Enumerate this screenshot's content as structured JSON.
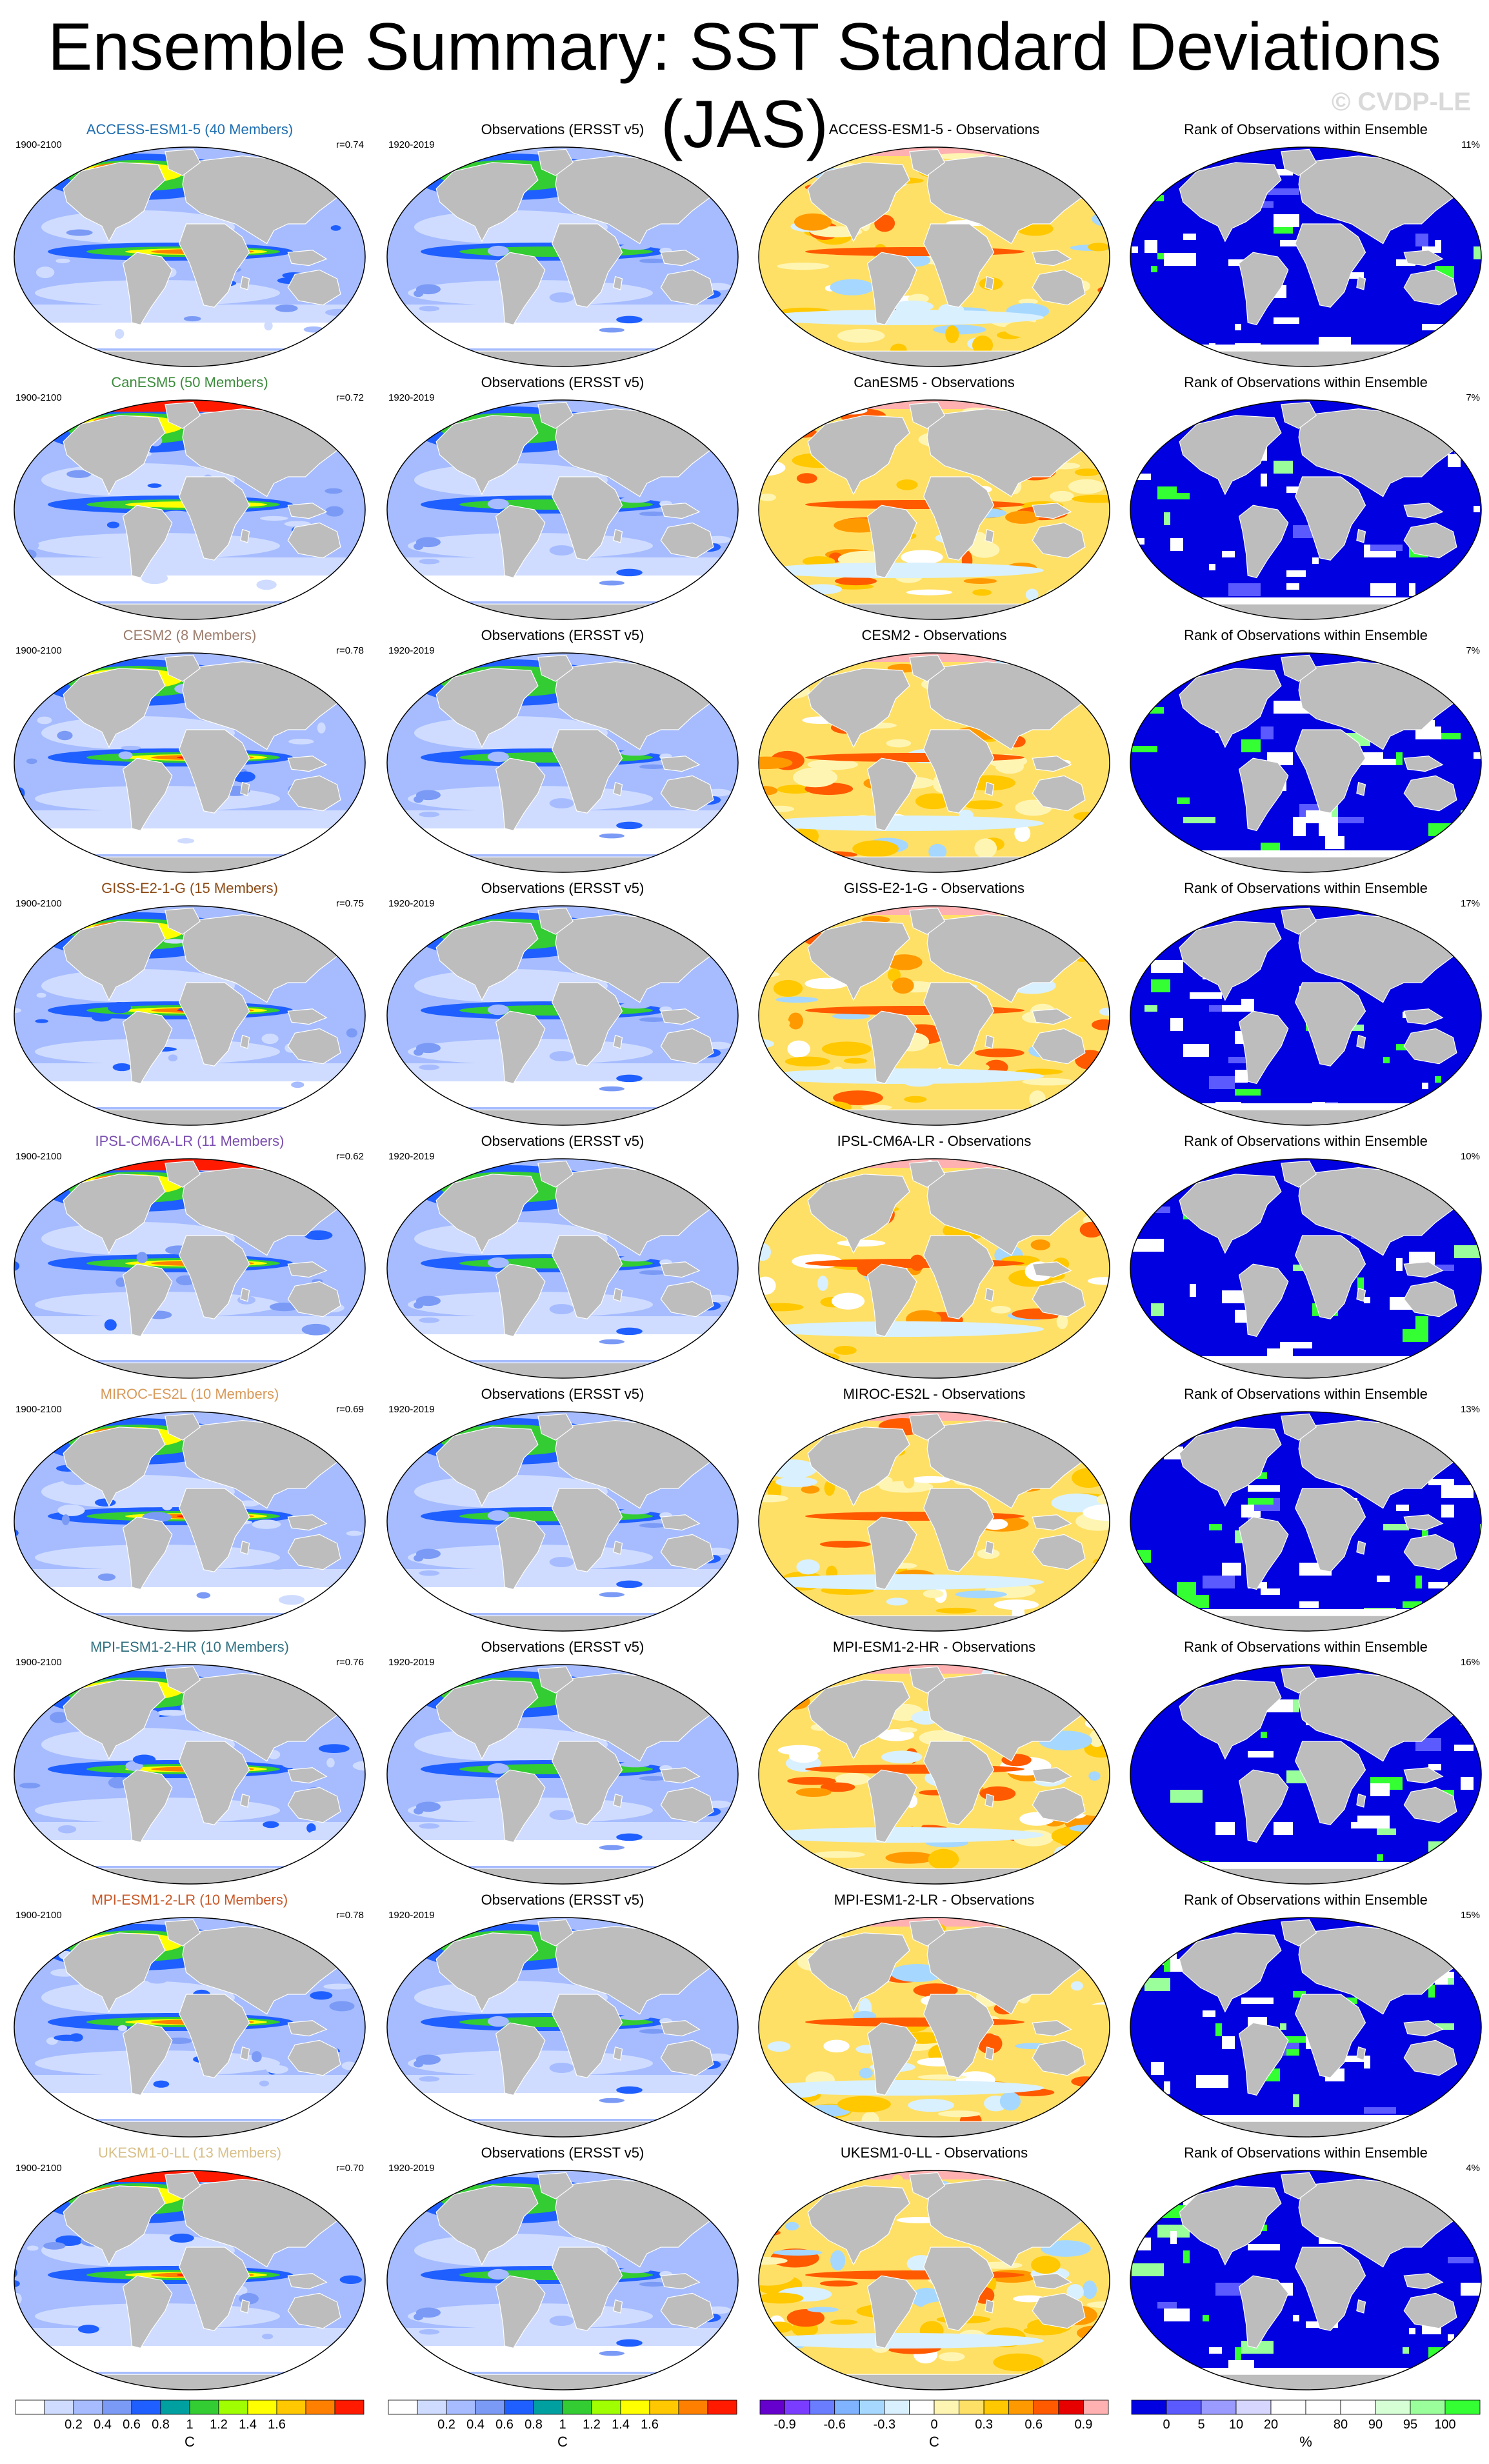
{
  "page": {
    "title": "Ensemble Summary: SST Standard Deviations (JAS)",
    "watermark": "© CVDP-LE"
  },
  "colors": {
    "land": "#bdbdbd",
    "sd_scale": [
      "#ffffff",
      "#cfdcff",
      "#a6bcff",
      "#7a9af5",
      "#1f5fff",
      "#00a0a0",
      "#33cc33",
      "#a0ff00",
      "#ffff00",
      "#ffc800",
      "#ff8000",
      "#ff1a00"
    ],
    "diff_scale": [
      "#6600cc",
      "#7a3dff",
      "#6a7dff",
      "#7fb2ff",
      "#a6d8ff",
      "#d9f0ff",
      "#ffffff",
      "#fff5b3",
      "#ffe066",
      "#ffc800",
      "#ff9900",
      "#ff5a00",
      "#e60000",
      "#ffb0b0"
    ],
    "rank_scale": [
      "#0000e0",
      "#5a5aff",
      "#9a9aff",
      "#d6d6ff",
      "#ffffff",
      "#ffffff",
      "#ffffff",
      "#d6ffd6",
      "#9aff9a",
      "#33ff33"
    ]
  },
  "colorbars": [
    {
      "unit": "C",
      "ticks": [
        "0.2",
        "0.4",
        "0.6",
        "0.8",
        "1",
        "1.2",
        "1.4",
        "1.6"
      ]
    },
    {
      "unit": "C",
      "ticks": [
        "0.2",
        "0.4",
        "0.6",
        "0.8",
        "1",
        "1.2",
        "1.4",
        "1.6"
      ]
    },
    {
      "unit": "C",
      "ticks": [
        "-0.9",
        "-0.6",
        "-0.3",
        "0",
        "0.3",
        "0.6",
        "0.9"
      ]
    },
    {
      "unit": "%",
      "ticks": [
        "0",
        "5",
        "10",
        "20",
        "80",
        "90",
        "95",
        "100"
      ]
    }
  ],
  "chart_data": {
    "type": "heatmap",
    "projection": "global map",
    "rows": [
      {
        "model": "ACCESS-ESM1-5",
        "model_label": "ACCESS-ESM1-5 (40 Members)",
        "model_color": "#1f6eb0",
        "model_years": "1900-2100",
        "r": "r=0.74",
        "obs_title": "Observations (ERSST v5)",
        "obs_years": "1920-2019",
        "diff_title": "ACCESS-ESM1-5 - Observations",
        "rank_title": "Rank of Observations within Ensemble",
        "rank_pct": "11%"
      },
      {
        "model": "CanESM5",
        "model_label": "CanESM5 (50 Members)",
        "model_color": "#3c8c3c",
        "model_years": "1900-2100",
        "r": "r=0.72",
        "obs_title": "Observations (ERSST v5)",
        "obs_years": "1920-2019",
        "diff_title": "CanESM5 - Observations",
        "rank_title": "Rank of Observations within Ensemble",
        "rank_pct": "7%"
      },
      {
        "model": "CESM2",
        "model_label": "CESM2 (8 Members)",
        "model_color": "#9c7c6c",
        "model_years": "1900-2100",
        "r": "r=0.78",
        "obs_title": "Observations (ERSST v5)",
        "obs_years": "1920-2019",
        "diff_title": "CESM2 - Observations",
        "rank_title": "Rank of Observations within Ensemble",
        "rank_pct": "7%"
      },
      {
        "model": "GISS-E2-1-G",
        "model_label": "GISS-E2-1-G (15 Members)",
        "model_color": "#8c4a14",
        "model_years": "1900-2100",
        "r": "r=0.75",
        "obs_title": "Observations (ERSST v5)",
        "obs_years": "1920-2019",
        "diff_title": "GISS-E2-1-G - Observations",
        "rank_title": "Rank of Observations within Ensemble",
        "rank_pct": "17%"
      },
      {
        "model": "IPSL-CM6A-LR",
        "model_label": "IPSL-CM6A-LR (11 Members)",
        "model_color": "#7b4fb0",
        "model_years": "1900-2100",
        "r": "r=0.62",
        "obs_title": "Observations (ERSST v5)",
        "obs_years": "1920-2019",
        "diff_title": "IPSL-CM6A-LR - Observations",
        "rank_title": "Rank of Observations within Ensemble",
        "rank_pct": "10%"
      },
      {
        "model": "MIROC-ES2L",
        "model_label": "MIROC-ES2L (10 Members)",
        "model_color": "#d89a5a",
        "model_years": "1900-2100",
        "r": "r=0.69",
        "obs_title": "Observations (ERSST v5)",
        "obs_years": "1920-2019",
        "diff_title": "MIROC-ES2L - Observations",
        "rank_title": "Rank of Observations within Ensemble",
        "rank_pct": "13%"
      },
      {
        "model": "MPI-ESM1-2-HR",
        "model_label": "MPI-ESM1-2-HR (10 Members)",
        "model_color": "#2f6f7f",
        "model_years": "1900-2100",
        "r": "r=0.76",
        "obs_title": "Observations (ERSST v5)",
        "obs_years": "1920-2019",
        "diff_title": "MPI-ESM1-2-HR - Observations",
        "rank_title": "Rank of Observations within Ensemble",
        "rank_pct": "16%"
      },
      {
        "model": "MPI-ESM1-2-LR",
        "model_label": "MPI-ESM1-2-LR (10 Members)",
        "model_color": "#c85a2a",
        "model_years": "1900-2100",
        "r": "r=0.78",
        "obs_title": "Observations (ERSST v5)",
        "obs_years": "1920-2019",
        "diff_title": "MPI-ESM1-2-LR - Observations",
        "rank_title": "Rank of Observations within Ensemble",
        "rank_pct": "15%"
      },
      {
        "model": "UKESM1-0-LL",
        "model_label": "UKESM1-0-LL (13 Members)",
        "model_color": "#d8c08a",
        "model_years": "1900-2100",
        "r": "r=0.70",
        "obs_title": "Observations (ERSST v5)",
        "obs_years": "1920-2019",
        "diff_title": "UKESM1-0-LL - Observations",
        "rank_title": "Rank of Observations within Ensemble",
        "rank_pct": "4%"
      }
    ]
  }
}
